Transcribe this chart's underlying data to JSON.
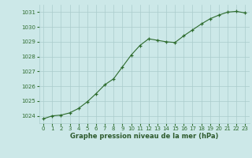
{
  "hours": [
    0,
    1,
    2,
    3,
    4,
    5,
    6,
    7,
    8,
    9,
    10,
    11,
    12,
    13,
    14,
    15,
    16,
    17,
    18,
    19,
    20,
    21,
    22,
    23
  ],
  "pressure": [
    1023.8,
    1024.0,
    1024.05,
    1024.2,
    1024.5,
    1024.95,
    1025.5,
    1026.1,
    1026.5,
    1027.3,
    1028.1,
    1028.75,
    1029.2,
    1029.1,
    1029.0,
    1028.95,
    1029.4,
    1029.8,
    1030.2,
    1030.55,
    1030.8,
    1031.0,
    1031.05,
    1030.95
  ],
  "ylim_min": 1023.5,
  "ylim_max": 1031.5,
  "yticks": [
    1024,
    1025,
    1026,
    1027,
    1028,
    1029,
    1030,
    1031
  ],
  "xticks": [
    0,
    1,
    2,
    3,
    4,
    5,
    6,
    7,
    8,
    9,
    10,
    11,
    12,
    13,
    14,
    15,
    16,
    17,
    18,
    19,
    20,
    21,
    22,
    23
  ],
  "line_color": "#2d6b2d",
  "marker_color": "#2d6b2d",
  "bg_color": "#cce8e8",
  "grid_color": "#aacccc",
  "xlabel": "Graphe pression niveau de la mer (hPa)",
  "xlabel_color": "#2d5a2d",
  "tick_color": "#2d6b2d",
  "tick_fontsize": 5.0,
  "xlabel_fontsize": 6.0,
  "figwidth": 3.2,
  "figheight": 2.0,
  "dpi": 100
}
